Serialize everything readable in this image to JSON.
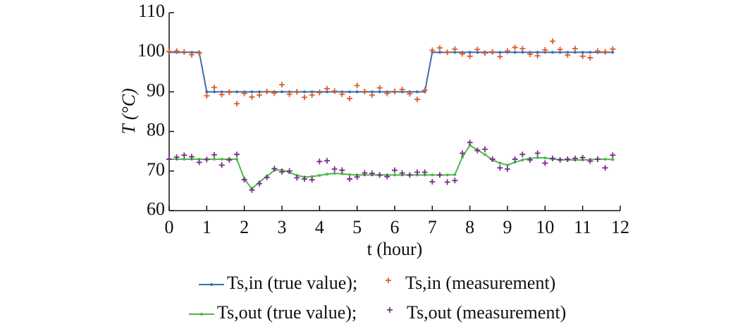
{
  "chart_data": {
    "type": "line",
    "xlabel": "t (hour)",
    "ylabel": "T (°C)",
    "x": [
      0,
      0.2,
      0.4,
      0.6,
      0.8,
      1,
      1.2,
      1.4,
      1.6,
      1.8,
      2,
      2.2,
      2.4,
      2.6,
      2.8,
      3,
      3.2,
      3.4,
      3.6,
      3.8,
      4,
      4.2,
      4.4,
      4.6,
      4.8,
      5,
      5.2,
      5.4,
      5.6,
      5.8,
      6,
      6.2,
      6.4,
      6.6,
      6.8,
      7,
      7.2,
      7.4,
      7.6,
      7.8,
      8,
      8.2,
      8.4,
      8.6,
      8.8,
      9,
      9.2,
      9.4,
      9.6,
      9.8,
      10,
      10.2,
      10.4,
      10.6,
      10.8,
      11,
      11.2,
      11.4,
      11.6,
      11.8
    ],
    "xlim": [
      0,
      12
    ],
    "xticks": [
      0,
      1,
      2,
      3,
      4,
      5,
      6,
      7,
      8,
      9,
      10,
      11,
      12
    ],
    "ylim": [
      60,
      110
    ],
    "yticks": [
      60,
      70,
      80,
      90,
      100,
      110
    ],
    "series": [
      {
        "name": "Ts,in (true value);",
        "type": "line",
        "color": "#3a6fb0",
        "values": [
          100,
          100,
          100,
          100,
          100,
          90,
          90,
          90,
          90,
          90,
          90,
          90,
          90,
          90,
          90,
          90,
          90,
          90,
          90,
          90,
          90,
          90,
          90,
          90,
          90,
          90,
          90,
          90,
          90,
          90,
          90,
          90,
          90,
          90,
          90,
          100,
          100,
          100,
          100,
          100,
          100,
          100,
          100,
          100,
          100,
          100,
          100,
          100,
          100,
          100,
          100,
          100,
          100,
          100,
          100,
          100,
          100,
          100,
          100,
          100
        ]
      },
      {
        "name": "Ts,in (measurement)",
        "type": "scatter",
        "color": "#e05a2b",
        "values": [
          100.2,
          100.3,
          100.1,
          99.4,
          99.8,
          89.0,
          91.1,
          89.3,
          89.9,
          87.0,
          89.6,
          88.7,
          89.2,
          90.1,
          89.7,
          91.8,
          89.4,
          90.0,
          88.6,
          89.2,
          89.8,
          90.8,
          90.2,
          89.4,
          88.3,
          91.6,
          90.1,
          89.2,
          91.0,
          89.6,
          90.1,
          90.6,
          89.5,
          88.1,
          90.4,
          100.5,
          101.1,
          100.0,
          100.8,
          99.6,
          99.0,
          100.7,
          99.8,
          100.1,
          98.9,
          100.3,
          101.2,
          100.9,
          99.5,
          99.1,
          100.6,
          102.8,
          100.7,
          99.3,
          100.9,
          99.0,
          98.6,
          100.3,
          100.1,
          100.8
        ]
      },
      {
        "name": "Ts,out (true value);",
        "type": "line",
        "color": "#4cb848",
        "values": [
          73,
          73,
          73,
          73,
          73,
          73,
          73,
          73,
          73,
          73,
          68,
          65.5,
          67.2,
          68.7,
          70.2,
          70.3,
          69.6,
          68.9,
          68.5,
          68.6,
          68.9,
          69.2,
          69.4,
          69.3,
          69.1,
          69,
          69,
          69,
          69,
          69,
          69,
          69,
          69,
          69,
          69,
          69,
          69,
          69,
          69.1,
          73.5,
          76.5,
          75.3,
          74.2,
          72.8,
          72,
          71.5,
          72.2,
          72.8,
          73.2,
          73.4,
          73.3,
          73,
          72.9,
          72.8,
          72.8,
          72.8,
          72.9,
          73,
          73,
          72.9
        ]
      },
      {
        "name": "Ts,out (measurement)",
        "type": "scatter",
        "color": "#7b2d8e",
        "values": [
          73.0,
          73.5,
          74.0,
          73.6,
          72.2,
          72.9,
          74.1,
          71.5,
          72.8,
          74.2,
          67.8,
          65.2,
          66.8,
          68.4,
          70.6,
          69.8,
          70.0,
          68.3,
          68.0,
          67.8,
          72.4,
          72.6,
          70.5,
          70.2,
          68.0,
          68.5,
          69.5,
          69.4,
          69.0,
          68.6,
          70.2,
          69.5,
          69.0,
          69.7,
          69.7,
          67.3,
          69.0,
          67.2,
          67.6,
          74.5,
          77.2,
          75.2,
          75.5,
          73.0,
          70.8,
          70.5,
          73.0,
          74.2,
          72.8,
          74.5,
          72.0,
          73.2,
          72.8,
          73.0,
          73.2,
          73.4,
          72.5,
          73.0,
          70.8,
          74.0
        ]
      }
    ]
  }
}
